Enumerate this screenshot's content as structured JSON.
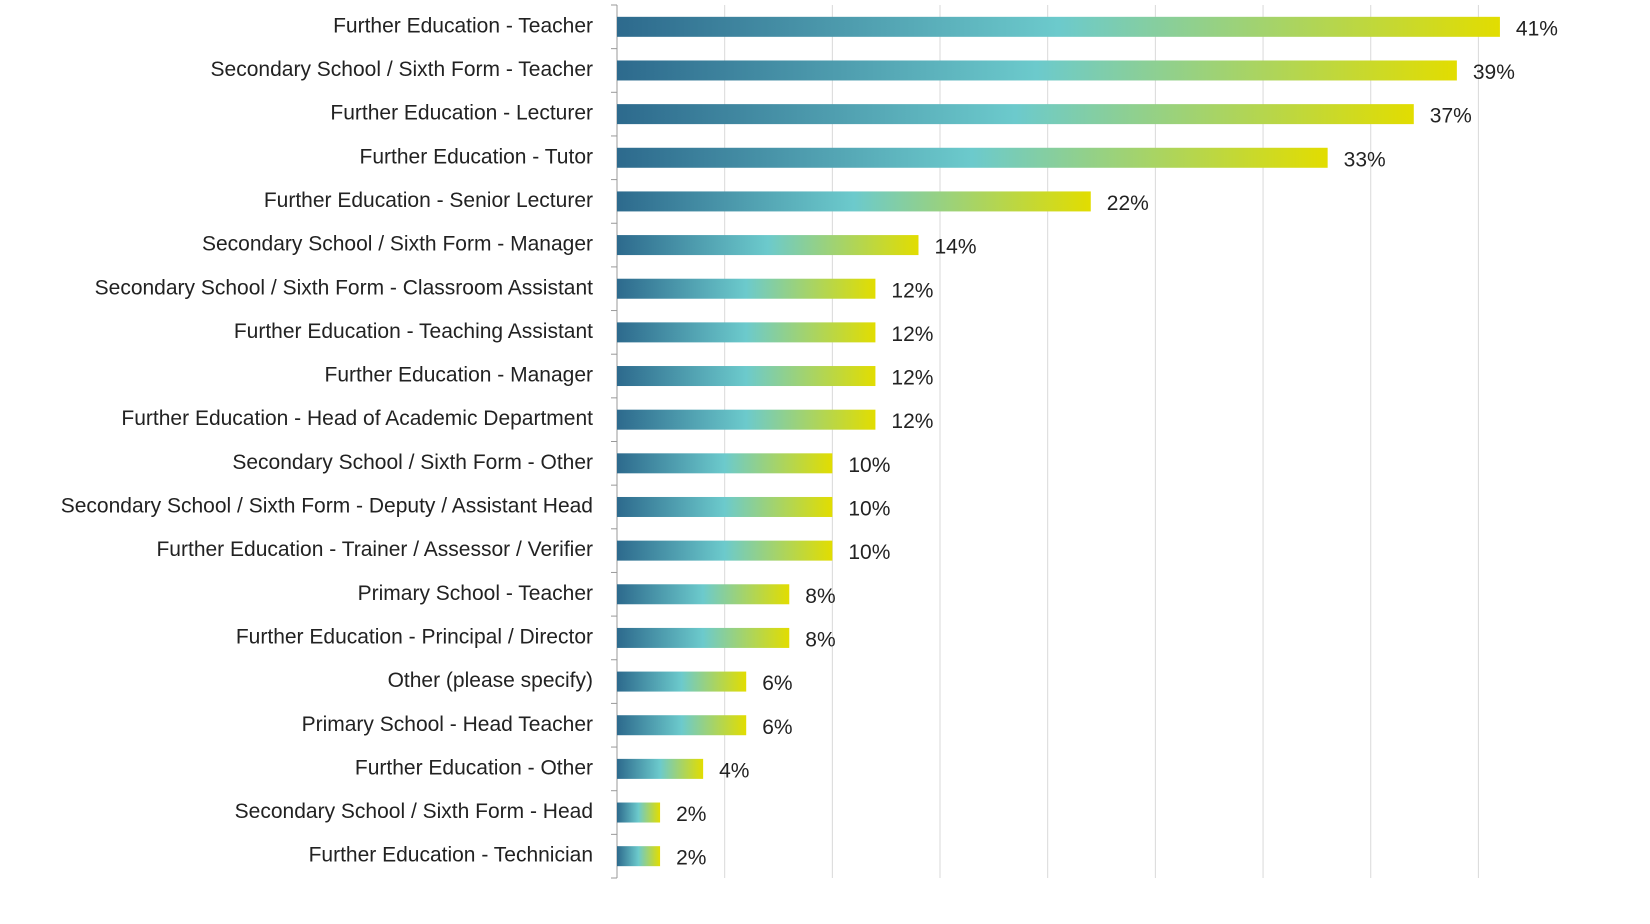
{
  "chart_data": {
    "type": "hbar",
    "categories": [
      "Further Education - Teacher",
      "Secondary School / Sixth Form - Teacher",
      "Further Education - Lecturer",
      "Further Education - Tutor",
      "Further Education - Senior Lecturer",
      "Secondary School / Sixth Form - Manager",
      "Secondary School / Sixth Form - Classroom Assistant",
      "Further Education - Teaching Assistant",
      "Further Education - Manager",
      "Further Education - Head of Academic Department",
      "Secondary School / Sixth Form - Other",
      "Secondary School / Sixth Form - Deputy / Assistant Head",
      "Further Education - Trainer / Assessor / Verifier",
      "Primary School - Teacher",
      "Further Education - Principal / Director",
      "Other (please specify)",
      "Primary School - Head Teacher",
      "Further Education - Other",
      "Secondary School / Sixth Form - Head",
      "Further Education - Technician"
    ],
    "values": [
      41,
      39,
      37,
      33,
      22,
      14,
      12,
      12,
      12,
      12,
      10,
      10,
      10,
      8,
      8,
      6,
      6,
      4,
      2,
      2
    ],
    "value_labels": [
      "41%",
      "39%",
      "37%",
      "33%",
      "22%",
      "14%",
      "12%",
      "12%",
      "12%",
      "12%",
      "10%",
      "10%",
      "10%",
      "8%",
      "8%",
      "6%",
      "6%",
      "4%",
      "2%",
      "2%"
    ],
    "gradient_colors": [
      "#2d6a8d",
      "#6ccacc",
      "#e2dd00"
    ],
    "xlim": [
      0,
      43
    ],
    "xticks": [
      0,
      5,
      10,
      15,
      20,
      25,
      30,
      35,
      40
    ],
    "grid": true
  }
}
